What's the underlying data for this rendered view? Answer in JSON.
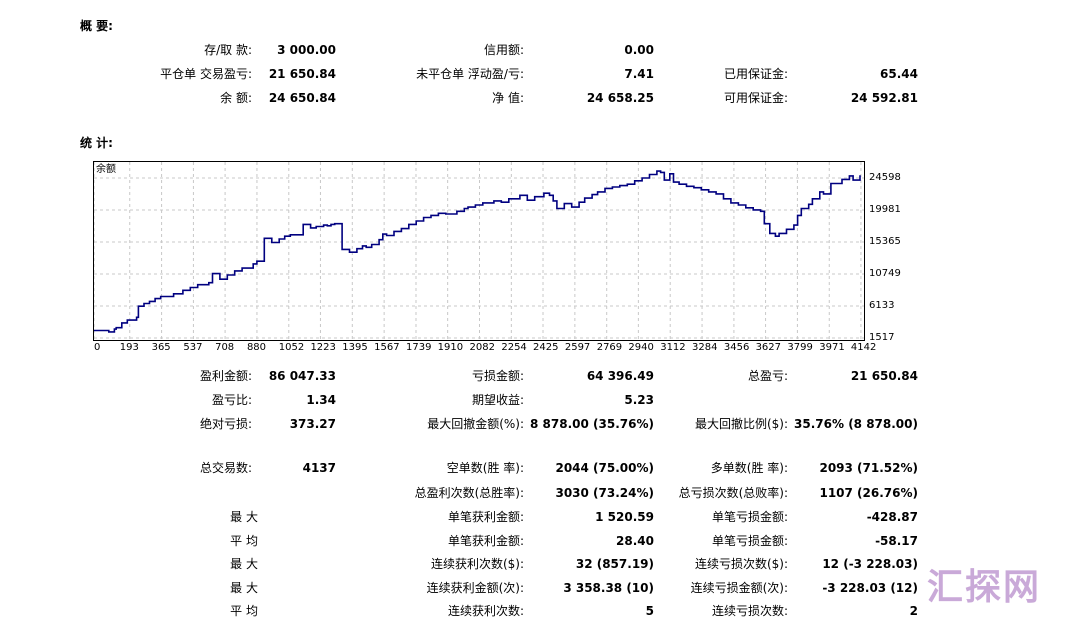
{
  "summary": {
    "title": "概 要:",
    "rows": [
      [
        {
          "label": "存/取 款:",
          "value": "3 000.00"
        },
        {
          "label": "信用额:",
          "value": "0.00"
        },
        {
          "label": "",
          "value": ""
        }
      ],
      [
        {
          "label": "平仓单 交易盈亏:",
          "value": "21 650.84"
        },
        {
          "label": "未平仓单 浮动盈/亏:",
          "value": "7.41"
        },
        {
          "label": "已用保证金:",
          "value": "65.44"
        }
      ],
      [
        {
          "label": "余 额:",
          "value": "24 650.84"
        },
        {
          "label": "净 值:",
          "value": "24 658.25"
        },
        {
          "label": "可用保证金:",
          "value": "24 592.81"
        }
      ]
    ]
  },
  "stats": {
    "title": "统 计:",
    "rows1": [
      [
        {
          "label": "盈利金额:",
          "value": "86 047.33"
        },
        {
          "label": "亏损金额:",
          "value": "64 396.49"
        },
        {
          "label": "总盈亏:",
          "value": "21 650.84"
        }
      ],
      [
        {
          "label": "盈亏比:",
          "value": "1.34"
        },
        {
          "label": "期望收益:",
          "value": "5.23"
        },
        {
          "label": "",
          "value": ""
        }
      ],
      [
        {
          "label": "绝对亏损:",
          "value": "373.27"
        },
        {
          "label": "最大回撤金额(%):",
          "value": "8 878.00 (35.76%)"
        },
        {
          "label": "最大回撤比例($):",
          "value": "35.76% (8 878.00)"
        }
      ]
    ],
    "total_trades_label": "总交易数:",
    "total_trades_value": "4137",
    "rows2": [
      {
        "left": "",
        "c2l": "空单数(胜 率):",
        "c2v": "2044 (75.00%)",
        "c3l": "多单数(胜 率):",
        "c3v": "2093 (71.52%)"
      },
      {
        "left": "",
        "c2l": "总盈利次数(总胜率):",
        "c2v": "3030 (73.24%)",
        "c3l": "总亏损次数(总败率):",
        "c3v": "1107 (26.76%)"
      },
      {
        "left": "最 大",
        "c2l": "单笔获利金额:",
        "c2v": "1 520.59",
        "c3l": "单笔亏损金额:",
        "c3v": "-428.87"
      },
      {
        "left": "平 均",
        "c2l": "单笔获利金额:",
        "c2v": "28.40",
        "c3l": "单笔亏损金额:",
        "c3v": "-58.17"
      },
      {
        "left": "最 大",
        "c2l": "连续获利次数($):",
        "c2v": "32 (857.19)",
        "c3l": "连续亏损次数($):",
        "c3v": "12 (-3 228.03)"
      },
      {
        "left": "最 大",
        "c2l": "连续获利金额(次):",
        "c2v": "3 358.38 (10)",
        "c3l": "连续亏损金额(次):",
        "c3v": "-3 228.03 (12)"
      },
      {
        "left": "平 均",
        "c2l": "连续获利次数:",
        "c2v": "5",
        "c3l": "连续亏损次数:",
        "c3v": "2"
      }
    ]
  },
  "chart_data": {
    "type": "line",
    "legend": "余额",
    "xticks": [
      0,
      193,
      365,
      537,
      708,
      880,
      1052,
      1223,
      1395,
      1567,
      1739,
      1910,
      2082,
      2254,
      2425,
      2597,
      2769,
      2940,
      3112,
      3284,
      3456,
      3627,
      3799,
      3971,
      4142
    ],
    "yticks": [
      1517,
      6133,
      10749,
      15365,
      19981,
      24598
    ],
    "xlim": [
      0,
      4137
    ],
    "ylim": [
      1517,
      26000
    ],
    "line_color": "#000080",
    "grid": true,
    "series": [
      {
        "x": [
          0,
          80,
          110,
          120,
          150,
          180,
          230,
          240,
          270,
          300,
          330,
          360,
          430,
          480,
          520,
          560,
          620,
          640,
          680,
          720,
          760,
          800,
          860,
          880,
          920,
          960,
          1000,
          1030,
          1060,
          1130,
          1170,
          1200,
          1240,
          1260,
          1280,
          1300,
          1340,
          1380,
          1420,
          1450,
          1470,
          1500,
          1540,
          1560,
          1580,
          1620,
          1660,
          1700,
          1740,
          1780,
          1820,
          1860,
          1900,
          1960,
          2000,
          2020,
          2060,
          2100,
          2160,
          2200,
          2240,
          2300,
          2340,
          2380,
          2430,
          2460,
          2480,
          2500,
          2540,
          2580,
          2620,
          2650,
          2690,
          2720,
          2760,
          2800,
          2840,
          2880,
          2920,
          2960,
          3000,
          3040,
          3060,
          3080,
          3110,
          3130,
          3160,
          3200,
          3240,
          3280,
          3320,
          3360,
          3400,
          3440,
          3480,
          3520,
          3560,
          3600,
          3620,
          3650,
          3680,
          3700,
          3740,
          3780,
          3800,
          3820,
          3860,
          3880,
          3920,
          3940,
          3980,
          4040,
          4080,
          4100,
          4137
        ],
        "y": [
          2600,
          2400,
          2800,
          3000,
          3700,
          4100,
          4500,
          6100,
          6500,
          6800,
          7200,
          7500,
          7900,
          8400,
          8800,
          9200,
          9500,
          10800,
          10000,
          10600,
          11200,
          11600,
          12200,
          12600,
          15900,
          15300,
          15800,
          16200,
          16400,
          17900,
          17400,
          17600,
          17800,
          17700,
          17900,
          18000,
          14300,
          13900,
          14400,
          14800,
          14600,
          15000,
          15700,
          16500,
          16300,
          16900,
          17300,
          17900,
          18400,
          18900,
          19200,
          19500,
          19400,
          19800,
          20200,
          20400,
          20700,
          21000,
          21300,
          21100,
          21600,
          22100,
          21400,
          21900,
          22400,
          22100,
          21300,
          20200,
          20900,
          20400,
          21100,
          21700,
          22200,
          22600,
          23100,
          23300,
          23500,
          23700,
          24200,
          24600,
          25100,
          25600,
          25400,
          24300,
          25200,
          24000,
          23700,
          23400,
          23200,
          22900,
          22600,
          22300,
          21600,
          21000,
          20700,
          20300,
          20000,
          19800,
          18000,
          16600,
          16200,
          16600,
          17200,
          17800,
          19200,
          20200,
          20800,
          21600,
          22600,
          22300,
          23800,
          24400,
          24900,
          24300,
          25000
        ]
      }
    ]
  },
  "watermark": "汇探网"
}
